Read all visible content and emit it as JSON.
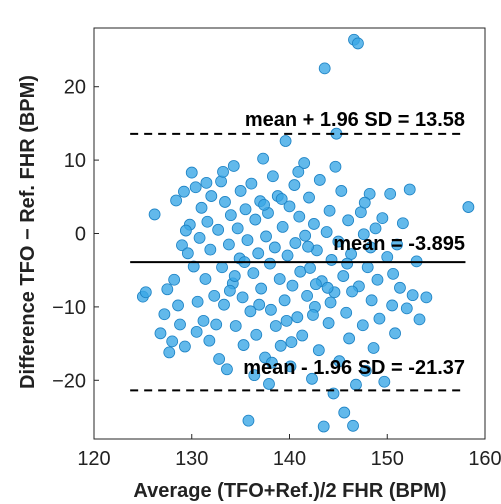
{
  "chart_data": {
    "type": "scatter",
    "title": "",
    "xlabel": "Average (TFO+Ref.)/2 FHR (BPM)",
    "ylabel": "Difference TFO − Ref. FHR (BPM)",
    "xlim": [
      120,
      160
    ],
    "ylim": [
      -28,
      28
    ],
    "xticks": [
      120,
      130,
      140,
      150,
      160
    ],
    "yticks": [
      -20,
      -10,
      0,
      10,
      20
    ],
    "grid": false,
    "colors": {
      "point_fill": "#3ba7e6",
      "point_stroke": "#1d82c4",
      "line": "#000000"
    },
    "reference_lines": [
      {
        "name": "upper-loa",
        "y": 13.58,
        "style": "dashed",
        "label": "mean + 1.96 SD = 13.58"
      },
      {
        "name": "mean",
        "y": -3.895,
        "style": "solid",
        "label": "mean = -3.895"
      },
      {
        "name": "lower-loa",
        "y": -21.37,
        "style": "dashed",
        "label": "mean - 1.96 SD = -21.37"
      }
    ],
    "points": [
      [
        125.0,
        -8.6
      ],
      [
        125.3,
        -8.0
      ],
      [
        126.2,
        2.6
      ],
      [
        126.8,
        -13.6
      ],
      [
        127.2,
        -11.0
      ],
      [
        127.7,
        -16.2
      ],
      [
        128.0,
        -14.7
      ],
      [
        128.4,
        4.5
      ],
      [
        128.6,
        -9.8
      ],
      [
        128.8,
        -12.4
      ],
      [
        129.0,
        -1.6
      ],
      [
        129.2,
        5.7
      ],
      [
        129.3,
        -15.4
      ],
      [
        129.6,
        -2.7
      ],
      [
        129.8,
        1.2
      ],
      [
        130.0,
        8.3
      ],
      [
        130.2,
        -4.5
      ],
      [
        130.4,
        6.3
      ],
      [
        130.6,
        -9.3
      ],
      [
        130.8,
        -0.6
      ],
      [
        131.0,
        3.5
      ],
      [
        131.2,
        -11.9
      ],
      [
        131.4,
        -6.2
      ],
      [
        131.6,
        1.6
      ],
      [
        131.8,
        -14.6
      ],
      [
        131.9,
        -2.2
      ],
      [
        132.0,
        5.1
      ],
      [
        132.3,
        -8.5
      ],
      [
        132.5,
        -12.4
      ],
      [
        132.7,
        0.5
      ],
      [
        133.0,
        7.1
      ],
      [
        133.1,
        -4.6
      ],
      [
        133.3,
        -9.7
      ],
      [
        133.4,
        4.3
      ],
      [
        133.6,
        -18.5
      ],
      [
        133.8,
        -1.5
      ],
      [
        134.0,
        2.5
      ],
      [
        134.2,
        -6.8
      ],
      [
        134.3,
        9.2
      ],
      [
        134.5,
        -12.6
      ],
      [
        134.7,
        0.7
      ],
      [
        134.9,
        -3.4
      ],
      [
        135.0,
        5.8
      ],
      [
        135.2,
        -8.7
      ],
      [
        135.3,
        -15.2
      ],
      [
        135.5,
        3.3
      ],
      [
        135.7,
        -0.9
      ],
      [
        135.8,
        -25.5
      ],
      [
        136.0,
        -10.6
      ],
      [
        136.1,
        6.8
      ],
      [
        136.3,
        -5.4
      ],
      [
        136.5,
        1.9
      ],
      [
        136.6,
        -13.8
      ],
      [
        136.8,
        -2.7
      ],
      [
        137.0,
        4.4
      ],
      [
        137.1,
        -7.5
      ],
      [
        137.3,
        10.2
      ],
      [
        137.5,
        -16.9
      ],
      [
        137.6,
        -0.4
      ],
      [
        137.8,
        2.8
      ],
      [
        138.0,
        -4.1
      ],
      [
        138.1,
        -10.4
      ],
      [
        138.3,
        7.8
      ],
      [
        138.5,
        -1.9
      ],
      [
        138.6,
        -12.6
      ],
      [
        138.8,
        5.1
      ],
      [
        139.0,
        -6.2
      ],
      [
        139.1,
        -15.3
      ],
      [
        139.3,
        0.9
      ],
      [
        139.5,
        -9.1
      ],
      [
        139.6,
        12.6
      ],
      [
        139.8,
        -3.0
      ],
      [
        140.0,
        3.7
      ],
      [
        140.1,
        -18.1
      ],
      [
        140.3,
        -7.1
      ],
      [
        140.5,
        6.6
      ],
      [
        140.6,
        -1.3
      ],
      [
        140.8,
        -11.4
      ],
      [
        141.0,
        2.3
      ],
      [
        141.1,
        -5.2
      ],
      [
        141.3,
        -13.9
      ],
      [
        141.5,
        9.6
      ],
      [
        141.6,
        -0.3
      ],
      [
        141.8,
        -8.5
      ],
      [
        142.0,
        4.9
      ],
      [
        142.1,
        -4.7
      ],
      [
        142.3,
        -19.8
      ],
      [
        142.5,
        1.3
      ],
      [
        142.6,
        -10.0
      ],
      [
        142.8,
        -2.3
      ],
      [
        143.0,
        -15.9
      ],
      [
        143.1,
        7.3
      ],
      [
        143.3,
        -6.5
      ],
      [
        143.5,
        -26.3
      ],
      [
        143.6,
        22.5
      ],
      [
        143.8,
        0.2
      ],
      [
        144.0,
        -12.2
      ],
      [
        144.1,
        3.1
      ],
      [
        144.3,
        -3.6
      ],
      [
        144.5,
        -21.8
      ],
      [
        144.6,
        -8.0
      ],
      [
        144.8,
        13.6
      ],
      [
        145.0,
        -1.1
      ],
      [
        145.1,
        -17.4
      ],
      [
        145.3,
        5.8
      ],
      [
        145.5,
        -5.8
      ],
      [
        145.6,
        -24.4
      ],
      [
        145.8,
        -10.8
      ],
      [
        146.0,
        1.8
      ],
      [
        146.1,
        -14.3
      ],
      [
        146.3,
        -2.8
      ],
      [
        146.5,
        -26.2
      ],
      [
        146.6,
        26.4
      ],
      [
        146.8,
        -20.6
      ],
      [
        147.0,
        25.9
      ],
      [
        147.1,
        -7.2
      ],
      [
        147.3,
        2.9
      ],
      [
        147.5,
        -12.5
      ],
      [
        147.6,
        -0.1
      ],
      [
        147.8,
        -18.7
      ],
      [
        148.0,
        -4.6
      ],
      [
        148.2,
        5.4
      ],
      [
        148.4,
        -9.1
      ],
      [
        148.6,
        -15.6
      ],
      [
        148.8,
        0.7
      ],
      [
        149.0,
        -6.3
      ],
      [
        149.2,
        -11.6
      ],
      [
        149.5,
        2.1
      ],
      [
        149.7,
        -20.2
      ],
      [
        150.0,
        -3.2
      ],
      [
        150.3,
        5.4
      ],
      [
        150.5,
        -9.8
      ],
      [
        150.8,
        -13.6
      ],
      [
        151.0,
        -1.5
      ],
      [
        151.3,
        -7.4
      ],
      [
        151.6,
        1.4
      ],
      [
        152.0,
        -10.2
      ],
      [
        152.3,
        6.0
      ],
      [
        152.6,
        -8.4
      ],
      [
        153.0,
        -3.8
      ],
      [
        153.3,
        -11.7
      ],
      [
        154.0,
        -8.7
      ],
      [
        158.3,
        3.6
      ],
      [
        128.2,
        -6.3
      ],
      [
        130.5,
        -13.4
      ],
      [
        132.8,
        -17.1
      ],
      [
        134.4,
        -5.8
      ],
      [
        136.4,
        -19.3
      ],
      [
        138.2,
        -17.6
      ],
      [
        140.2,
        -14.8
      ],
      [
        142.7,
        -6.9
      ],
      [
        144.2,
        -9.4
      ],
      [
        146.4,
        -7.9
      ],
      [
        131.5,
        6.9
      ],
      [
        133.2,
        8.4
      ],
      [
        135.4,
        -3.9
      ],
      [
        137.9,
        -20.5
      ],
      [
        139.7,
        -11.9
      ],
      [
        141.9,
        -1.8
      ],
      [
        143.9,
        -7.4
      ],
      [
        145.9,
        -4.1
      ],
      [
        148.3,
        -1.9
      ],
      [
        150.6,
        -5.5
      ],
      [
        129.4,
        0.4
      ],
      [
        133.9,
        -7.8
      ],
      [
        137.4,
        3.9
      ],
      [
        140.9,
        8.4
      ],
      [
        144.7,
        9.1
      ],
      [
        127.5,
        -7.6
      ],
      [
        136.9,
        -9.7
      ],
      [
        139.2,
        4.7
      ],
      [
        142.4,
        -11.1
      ],
      [
        147.7,
        4.2
      ]
    ]
  }
}
